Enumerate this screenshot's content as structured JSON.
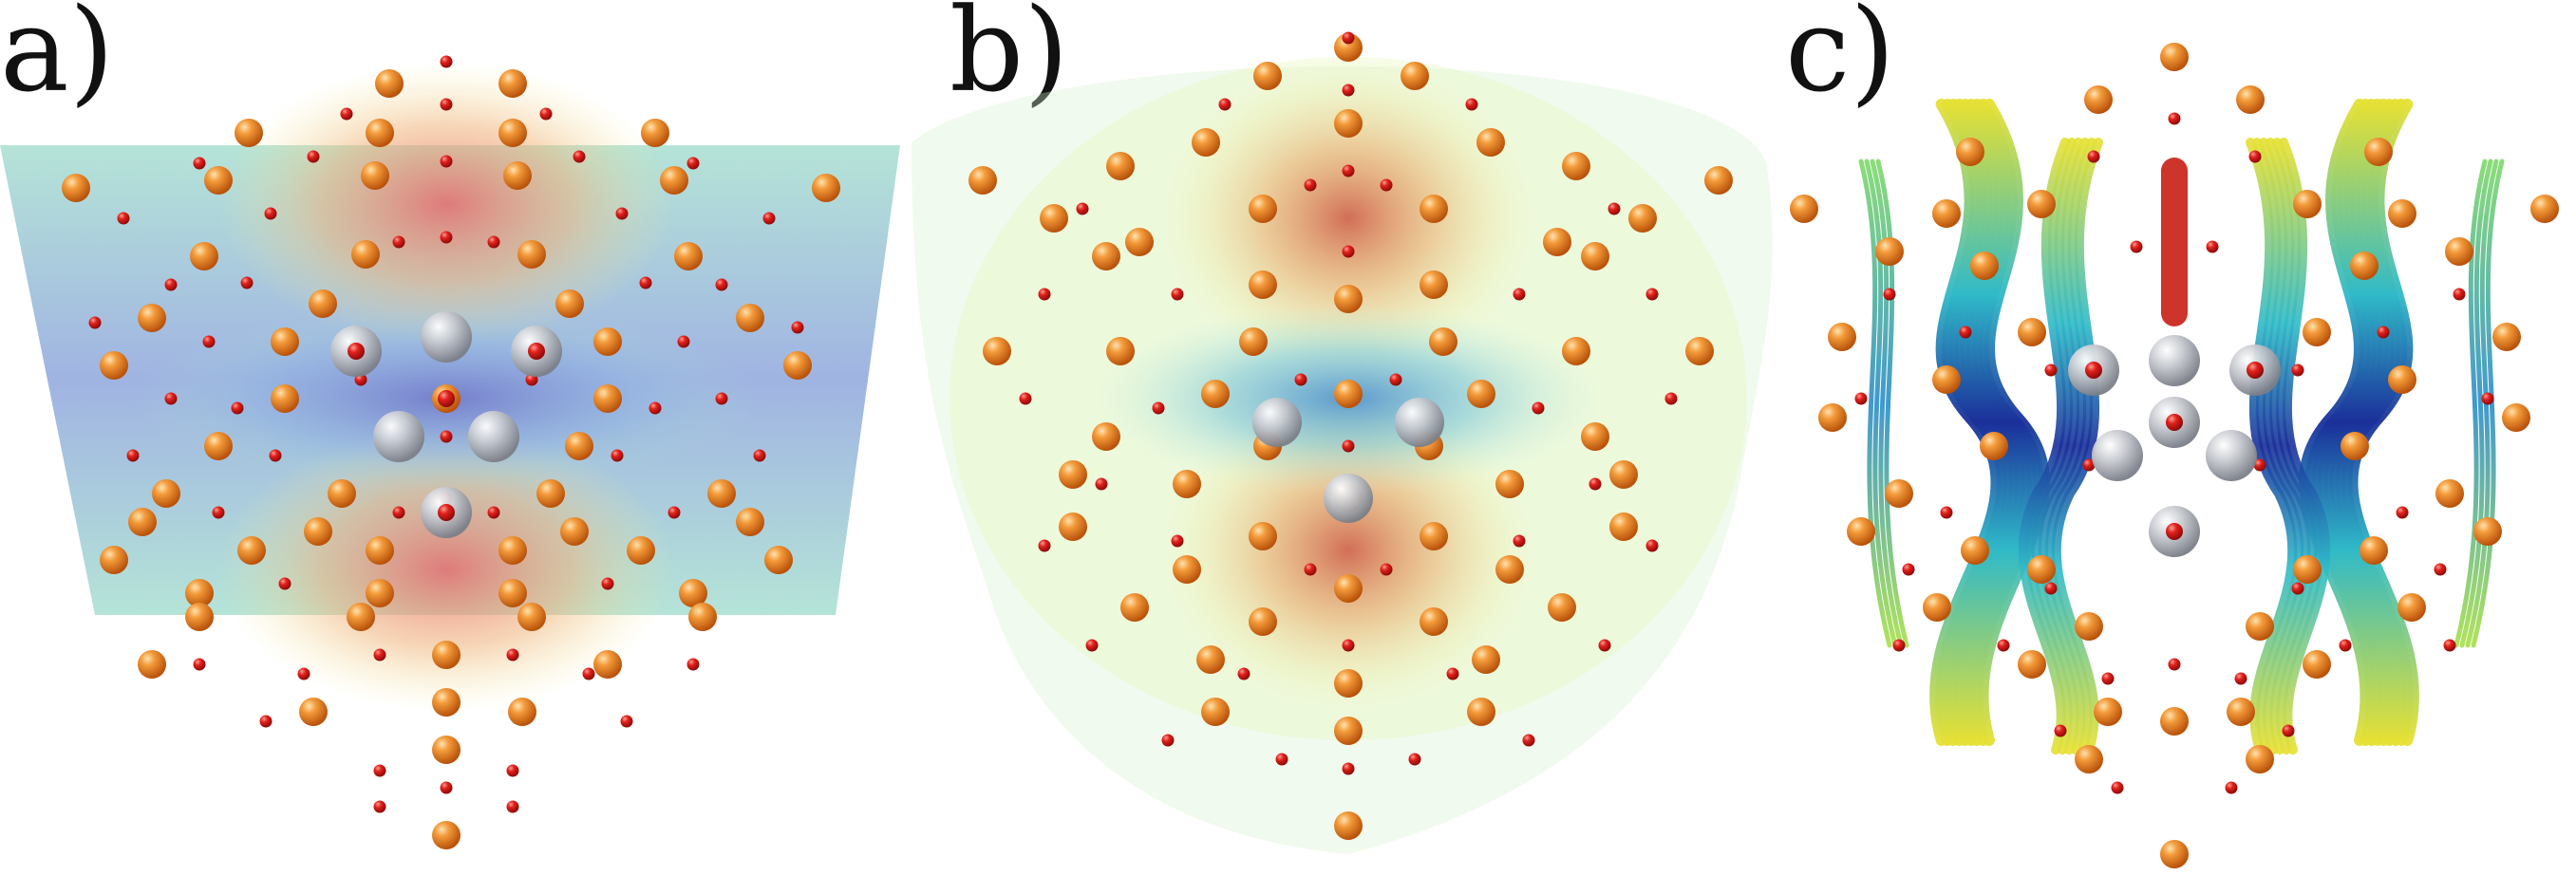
{
  "panels": [
    {
      "label": "a)"
    },
    {
      "label": "b)"
    },
    {
      "label": "c)"
    }
  ],
  "colors": {
    "large_atom": "#ee7a1e",
    "small_atom": "#d8141a",
    "defect_atom": "#b9bcc2",
    "field_high": "#e8776e",
    "field_mid": "#f2e9a0",
    "field_low": "#6f79c9",
    "background": "#ffffff"
  },
  "icons": {
    "large_atom": "orange-sphere-icon",
    "small_atom": "red-sphere-icon",
    "defect_atom": "grey-sphere-icon"
  }
}
